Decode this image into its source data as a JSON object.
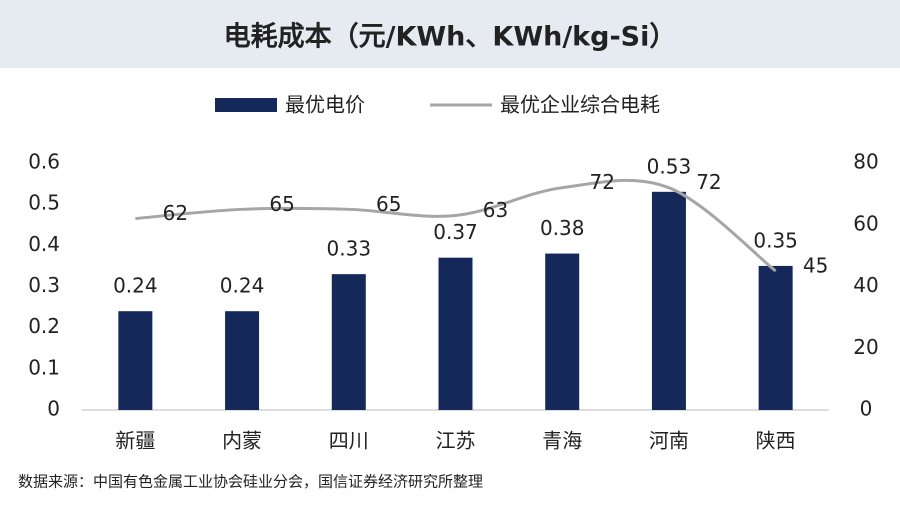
{
  "chart_data": {
    "type": "combo",
    "title": "电耗成本（元/KWh、KWh/kg-Si）",
    "categories": [
      "新疆",
      "内蒙",
      "四川",
      "江苏",
      "青海",
      "河南",
      "陕西"
    ],
    "series": [
      {
        "name": "最优电价",
        "color": "#14285a",
        "values": [
          0.24,
          0.24,
          0.33,
          0.37,
          0.38,
          0.53,
          0.35
        ]
      },
      {
        "name": "最优企业综合电耗",
        "color": "#a6a6a6",
        "axis": "y2",
        "values": [
          62,
          65,
          65,
          63,
          72,
          72,
          45
        ]
      }
    ],
    "ylim": [
      0,
      0.6
    ],
    "yticks": [
      0,
      0.1,
      0.2,
      0.3,
      0.4,
      0.5,
      0.6
    ],
    "y2lim": [
      0,
      80
    ],
    "y2ticks": [
      0,
      20,
      40,
      60,
      80
    ],
    "source": "数据来源：中国有色金属工业协会硅业分会，国信证券经济研究所整理"
  }
}
